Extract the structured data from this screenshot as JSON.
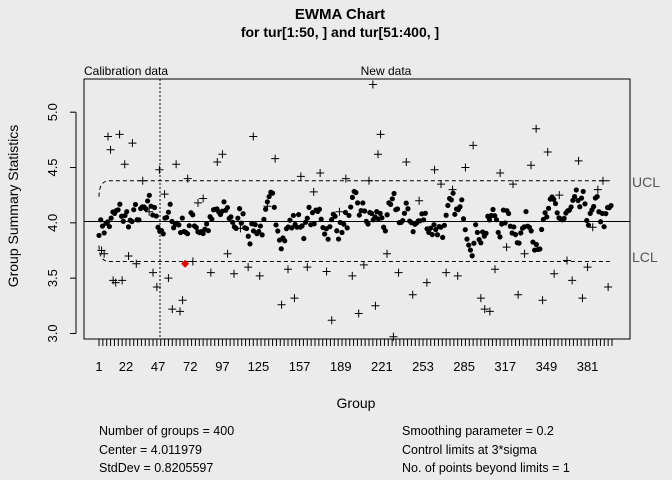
{
  "chart_data": {
    "type": "scatter",
    "title": "EWMA Chart",
    "subtitle": "for tur[1:50, ] and tur[51:400, ]",
    "xlabel": "Group",
    "ylabel": "Group Summary Statistics",
    "xlim": [
      1,
      400
    ],
    "ylim": [
      2.95,
      5.3
    ],
    "x_ticks": [
      1,
      22,
      47,
      72,
      97,
      125,
      157,
      189,
      221,
      253,
      285,
      317,
      349,
      381
    ],
    "y_ticks": [
      "3.0",
      "3.5",
      "4.0",
      "4.5",
      "5.0"
    ],
    "calibration_label": "Calibration data",
    "new_label": "New data",
    "calibration_end": 50,
    "center": 4.011979,
    "ucl": 4.38,
    "lcl": 3.65,
    "ucl_label": "UCL",
    "lcl_label": "LCL",
    "violation": {
      "x": 68,
      "y": 3.63
    },
    "series": [
      {
        "marker": "cross",
        "description": "group summary statistics",
        "points": [
          [
            3,
            3.75
          ],
          [
            5,
            3.72
          ],
          [
            8,
            4.78
          ],
          [
            10,
            4.66
          ],
          [
            12,
            3.48
          ],
          [
            14,
            3.46
          ],
          [
            17,
            4.8
          ],
          [
            19,
            3.48
          ],
          [
            21,
            4.53
          ],
          [
            24,
            3.7
          ],
          [
            27,
            4.72
          ],
          [
            30,
            3.63
          ],
          [
            35,
            4.38
          ],
          [
            40,
            4.1
          ],
          [
            43,
            3.55
          ],
          [
            46,
            3.42
          ],
          [
            48,
            4.48
          ],
          [
            52,
            4.26
          ],
          [
            55,
            3.5
          ],
          [
            58,
            3.22
          ],
          [
            61,
            4.53
          ],
          [
            64,
            3.2
          ],
          [
            66,
            3.3
          ],
          [
            70,
            4.4
          ],
          [
            74,
            3.65
          ],
          [
            78,
            4.18
          ],
          [
            82,
            4.22
          ],
          [
            88,
            3.55
          ],
          [
            93,
            4.55
          ],
          [
            97,
            4.62
          ],
          [
            101,
            3.72
          ],
          [
            106,
            3.54
          ],
          [
            111,
            3.95
          ],
          [
            117,
            3.6
          ],
          [
            121,
            4.78
          ],
          [
            126,
            3.52
          ],
          [
            132,
            4.15
          ],
          [
            138,
            4.58
          ],
          [
            143,
            3.26
          ],
          [
            148,
            3.58
          ],
          [
            153,
            3.32
          ],
          [
            158,
            4.42
          ],
          [
            163,
            3.6
          ],
          [
            168,
            4.28
          ],
          [
            173,
            4.45
          ],
          [
            178,
            3.56
          ],
          [
            182,
            3.12
          ],
          [
            188,
            4.1
          ],
          [
            193,
            4.4
          ],
          [
            198,
            3.52
          ],
          [
            203,
            3.18
          ],
          [
            207,
            3.62
          ],
          [
            211,
            4.38
          ],
          [
            214,
            5.25
          ],
          [
            216,
            3.25
          ],
          [
            218,
            4.62
          ],
          [
            220,
            4.8
          ],
          [
            225,
            3.72
          ],
          [
            230,
            2.97
          ],
          [
            234,
            3.55
          ],
          [
            240,
            4.55
          ],
          [
            245,
            3.35
          ],
          [
            250,
            4.2
          ],
          [
            256,
            3.46
          ],
          [
            262,
            4.48
          ],
          [
            267,
            4.35
          ],
          [
            271,
            3.55
          ],
          [
            276,
            4.3
          ],
          [
            280,
            3.52
          ],
          [
            286,
            4.5
          ],
          [
            292,
            4.7
          ],
          [
            298,
            3.32
          ],
          [
            301,
            3.22
          ],
          [
            305,
            3.2
          ],
          [
            309,
            3.58
          ],
          [
            313,
            4.45
          ],
          [
            318,
            3.78
          ],
          [
            323,
            4.35
          ],
          [
            327,
            3.35
          ],
          [
            332,
            3.72
          ],
          [
            337,
            4.52
          ],
          [
            341,
            4.85
          ],
          [
            346,
            3.3
          ],
          [
            350,
            4.64
          ],
          [
            355,
            3.54
          ],
          [
            359,
            4.25
          ],
          [
            365,
            3.66
          ],
          [
            369,
            3.48
          ],
          [
            374,
            4.56
          ],
          [
            377,
            3.32
          ],
          [
            381,
            3.6
          ],
          [
            385,
            3.96
          ],
          [
            389,
            4.3
          ],
          [
            393,
            4.38
          ],
          [
            397,
            3.42
          ]
        ]
      },
      {
        "marker": "dot",
        "description": "EWMA statistic"
      }
    ]
  },
  "stats": {
    "groups": "Number of groups = 400",
    "center": "Center = 4.011979",
    "stddev": "StdDev = 0.8205597",
    "smoothing": "Smoothing parameter =  0.2",
    "limits": "Control limits at 3*sigma",
    "beyond": "No. of points beyond limits = 1"
  }
}
